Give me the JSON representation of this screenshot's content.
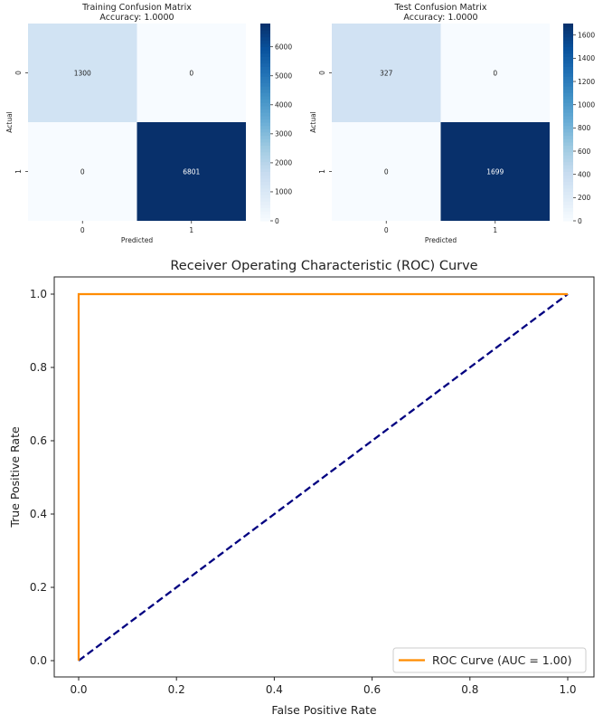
{
  "chart_data": [
    {
      "type": "heatmap",
      "title": "Training Confusion Matrix",
      "subtitle": "Accuracy: 1.0000",
      "xlabel": "Predicted",
      "ylabel": "Actual",
      "x_categories": [
        "0",
        "1"
      ],
      "y_categories": [
        "0",
        "1"
      ],
      "values": [
        [
          1300,
          0
        ],
        [
          0,
          6801
        ]
      ],
      "colormap": "Blues",
      "colorbar": {
        "min": 0,
        "max": 6801,
        "ticks": [
          0,
          1000,
          2000,
          3000,
          4000,
          5000,
          6000
        ]
      }
    },
    {
      "type": "heatmap",
      "title": "Test Confusion Matrix",
      "subtitle": "Accuracy: 1.0000",
      "xlabel": "Predicted",
      "ylabel": "Actual",
      "x_categories": [
        "0",
        "1"
      ],
      "y_categories": [
        "0",
        "1"
      ],
      "values": [
        [
          327,
          0
        ],
        [
          0,
          1699
        ]
      ],
      "colormap": "Blues",
      "colorbar": {
        "min": 0,
        "max": 1699,
        "ticks": [
          0,
          200,
          400,
          600,
          800,
          1000,
          1200,
          1400,
          1600
        ]
      }
    },
    {
      "type": "line",
      "title": "Receiver Operating Characteristic (ROC) Curve",
      "xlabel": "False Positive Rate",
      "ylabel": "True Positive Rate",
      "xlim": [
        0,
        1
      ],
      "ylim": [
        0,
        1
      ],
      "xticks": [
        0.0,
        0.2,
        0.4,
        0.6,
        0.8,
        1.0
      ],
      "yticks": [
        0.0,
        0.2,
        0.4,
        0.6,
        0.8,
        1.0
      ],
      "legend_position": "lower-right",
      "series": [
        {
          "name": "ROC Curve (AUC = 1.00)",
          "color": "#ff8c00",
          "style": "solid",
          "x": [
            0.0,
            0.0,
            1.0
          ],
          "y": [
            0.0,
            1.0,
            1.0
          ]
        },
        {
          "color": "#000080",
          "style": "dashed",
          "x": [
            0.0,
            1.0
          ],
          "y": [
            0.0,
            1.0
          ]
        }
      ]
    }
  ]
}
